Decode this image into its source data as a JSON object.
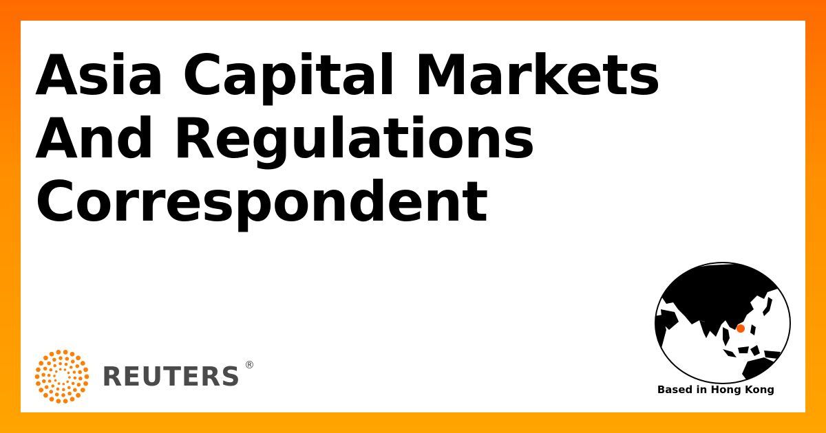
{
  "profile": {
    "title": "Asia Capital Markets And Regulations Correspondent",
    "location": "Based in Hong Kong"
  },
  "brand": {
    "name": "REUTERS",
    "registered_mark": "®",
    "accent_color": "#ff8000",
    "text_color": "#4a4a4a"
  },
  "map": {
    "icon": "globe-asia-icon",
    "marker_color": "#ff5a00"
  }
}
